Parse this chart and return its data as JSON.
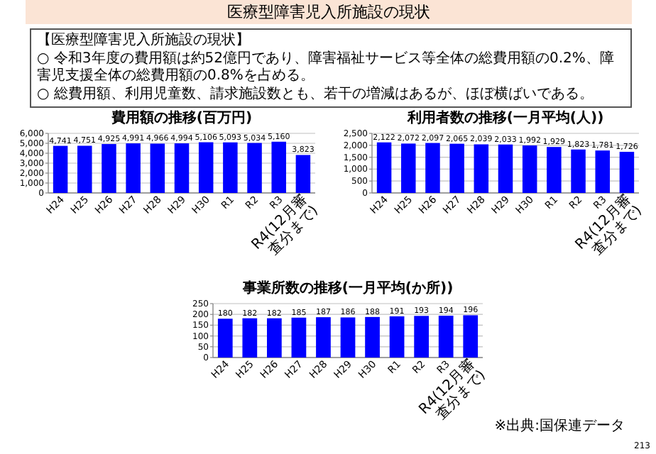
{
  "chart_data": [
    {
      "type": "other",
      "title": "医療型障害児入所施設の現状",
      "annotations": [
        "【医療型障害児入所施設の現状】",
        "○ 令和3年度の費用額は約52億円であり、障害福祉サービス等全体の総費用額の0.2%、障害児支援全体の総費用額の0.8%を占める。",
        "○ 総費用額、利用児童数、請求施設数とも、若干の増減はあるが、ほぼ横ばいである。"
      ]
    },
    {
      "type": "bar",
      "title": "費用額の推移(百万円)",
      "categories": [
        "H24",
        "H25",
        "H26",
        "H27",
        "H28",
        "H29",
        "H30",
        "R1",
        "R2",
        "R3",
        "R4(12月審査分まで)"
      ],
      "values": [
        4741,
        4751,
        4925,
        4991,
        4966,
        4994,
        5106,
        5093,
        5034,
        5160,
        3823
      ],
      "value_labels": [
        "4,741",
        "4,751",
        "4,925",
        "4,991",
        "4,966",
        "4,994",
        "5,106",
        "5,093",
        "5,034",
        "5,160",
        "3,823"
      ],
      "color": "#0000ff",
      "ylim": [
        0,
        6000
      ],
      "yticks": [
        {
          "value": 0,
          "label": "0"
        },
        {
          "value": 1000,
          "label": "1,000"
        },
        {
          "value": 2000,
          "label": "2,000"
        },
        {
          "value": 3000,
          "label": "3,000"
        },
        {
          "value": 4000,
          "label": "4,000"
        },
        {
          "value": 5000,
          "label": "5,000"
        },
        {
          "value": 6000,
          "label": "6,000"
        }
      ],
      "grid": "y"
    },
    {
      "type": "bar",
      "title": "利用者数の推移(一月平均(人))",
      "categories": [
        "H24",
        "H25",
        "H26",
        "H27",
        "H28",
        "H29",
        "H30",
        "R1",
        "R2",
        "R3",
        "R4(12月審査分まで)"
      ],
      "values": [
        2122,
        2072,
        2097,
        2065,
        2039,
        2033,
        1992,
        1929,
        1823,
        1781,
        1726
      ],
      "value_labels": [
        "2,122",
        "2,072",
        "2,097",
        "2,065",
        "2,039",
        "2,033",
        "1,992",
        "1,929",
        "1,823",
        "1,781",
        "1,726"
      ],
      "color": "#0000ff",
      "ylim": [
        0,
        2500
      ],
      "yticks": [
        {
          "value": 0,
          "label": "0"
        },
        {
          "value": 500,
          "label": "500"
        },
        {
          "value": 1000,
          "label": "1,000"
        },
        {
          "value": 1500,
          "label": "1,500"
        },
        {
          "value": 2000,
          "label": "2,000"
        },
        {
          "value": 2500,
          "label": "2,500"
        }
      ],
      "grid": "y"
    },
    {
      "type": "bar",
      "title": "事業所数の推移(一月平均(か所))",
      "categories": [
        "H24",
        "H25",
        "H26",
        "H27",
        "H28",
        "H29",
        "H30",
        "R1",
        "R2",
        "R3",
        "R4(12月審査分まで)"
      ],
      "values": [
        180,
        182,
        182,
        185,
        187,
        186,
        188,
        191,
        193,
        194,
        196
      ],
      "data_labels": true,
      "color": "#0000ff",
      "ylim": [
        0,
        250
      ],
      "yticks": [
        0,
        50,
        100,
        150,
        200,
        250
      ],
      "grid": "y",
      "annotations": [
        "※出典:国保連データ",
        "213"
      ]
    }
  ]
}
